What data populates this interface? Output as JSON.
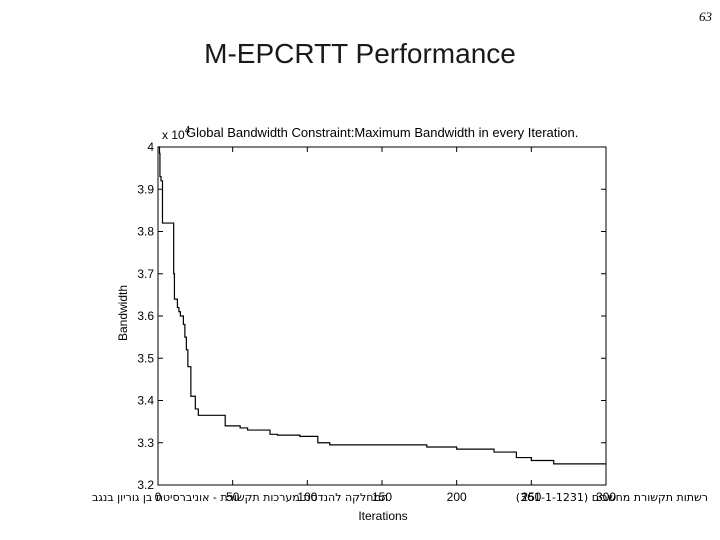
{
  "page_number": "63",
  "slide_title": "M-EPCRTT Performance",
  "footer": {
    "left_text": "המחלקה להנדסת מערכות תקשורת - אוניברסיטת בן גוריון בנגב",
    "right_text": "רשתות תקשורת מחשבים (361-1-1231)"
  },
  "chart_data": {
    "type": "line",
    "title": "Global Bandwidth Constraint:Maximum Bandwidth in every Iteration.",
    "xlabel": "Iterations",
    "ylabel": "Bandwidth",
    "y_multiplier_label": "x 10",
    "y_multiplier_exp": "4",
    "xlim": [
      0,
      300
    ],
    "ylim": [
      3.2,
      4.0
    ],
    "xticks": [
      "0",
      "50",
      "100",
      "150",
      "200",
      "250",
      "300"
    ],
    "yticks": [
      "3.2",
      "3.3",
      "3.4",
      "3.5",
      "3.6",
      "3.7",
      "3.8",
      "3.9",
      "4"
    ],
    "grid": false,
    "line_color": "#000000",
    "series": [
      {
        "step": true,
        "x": [
          0,
          1,
          1.3,
          2,
          3,
          10,
          10.5,
          11,
          13,
          14,
          15,
          17,
          18,
          19,
          20,
          22,
          25,
          27,
          45,
          55,
          60,
          75,
          80,
          95,
          105,
          107,
          115,
          130,
          145,
          150,
          160,
          180,
          200,
          210,
          225,
          230,
          240,
          250,
          265,
          300
        ],
        "y": [
          4.0,
          3.985,
          3.93,
          3.92,
          3.82,
          3.82,
          3.7,
          3.64,
          3.62,
          3.61,
          3.6,
          3.58,
          3.55,
          3.52,
          3.48,
          3.41,
          3.38,
          3.365,
          3.34,
          3.335,
          3.33,
          3.32,
          3.318,
          3.315,
          3.315,
          3.3,
          3.295,
          3.295,
          3.295,
          3.295,
          3.295,
          3.29,
          3.285,
          3.285,
          3.278,
          3.278,
          3.265,
          3.258,
          3.25,
          3.25
        ]
      }
    ]
  }
}
